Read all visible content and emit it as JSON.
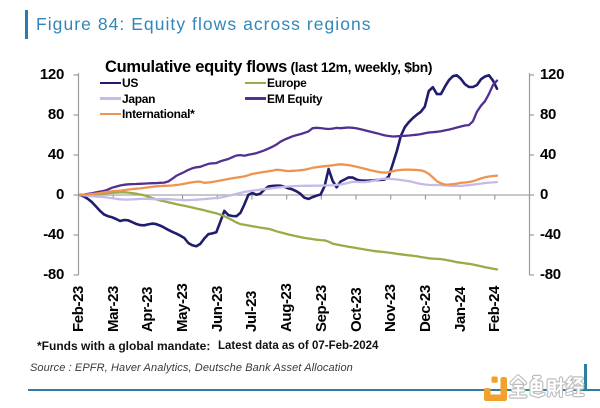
{
  "header": {
    "title": "Figure 84: Equity flows across regions",
    "title_color": "#3087ba",
    "bar_color": "#2d7ba6"
  },
  "chart_data": {
    "type": "line",
    "title": "Cumulative equity flows",
    "subtitle": "(last 12m, weekly, $bn)",
    "ylim": [
      -80,
      120
    ],
    "y_ticks": [
      "120",
      "80",
      "40",
      "0",
      "-40",
      "-80"
    ],
    "y_axis_sides": "left and right",
    "grid": "zero line only",
    "legend_position": "top-left two columns",
    "x_labels": [
      "Feb-23",
      "Mar-23",
      "Apr-23",
      "May-23",
      "Jun-23",
      "Jul-23",
      "Aug-23",
      "Sep-23",
      "Oct-23",
      "Nov-23",
      "Dec-23",
      "Jan-24",
      "Feb-24"
    ],
    "x_range_note": "weekly data from Feb-23 to 07-Feb-2024",
    "series": [
      {
        "name": "US",
        "color": "#1f1d6e",
        "values": [
          0,
          -1.5,
          -4.0,
          -7.2,
          -11.5,
          -15.9,
          -19.5,
          -21.2,
          -22.3,
          -24.0,
          -26.0,
          -25.0,
          -25.3,
          -27.1,
          -28.9,
          -30.1,
          -30.3,
          -29.4,
          -28.6,
          -29.1,
          -30.6,
          -32.6,
          -34.8,
          -36.8,
          -38.6,
          -40.6,
          -43.0,
          -48.0,
          -50.3,
          -51.3,
          -48.9,
          -43.5,
          -39.2,
          -38.4,
          -37.3,
          -26.8,
          -15.9,
          -20.1,
          -21.0,
          -21.2,
          -17.9,
          -9.4,
          0.2,
          2.0,
          0.3,
          1.4,
          5.4,
          8.6,
          9.1,
          9.3,
          9.3,
          8.2,
          6.6,
          5.6,
          3.7,
          1.1,
          -2.8,
          -3.9,
          -2.1,
          -0.6,
          0.5,
          8.8,
          26.0,
          14.2,
          7.7,
          13.5,
          15.5,
          17.6,
          17.4,
          15.4,
          14.4,
          14.3,
          14.4,
          14.6,
          14.9,
          15.2,
          15.6,
          18.5,
          31.1,
          43.8,
          59.0,
          67.8,
          72.8,
          76.9,
          80.3,
          83.2,
          88.3,
          104.0,
          107.8,
          100.9,
          100.9,
          108.3,
          114.8,
          118.8,
          119.7,
          116.1,
          110.8,
          108.1,
          108.0,
          110.0,
          115.8,
          118.5,
          119.7,
          114.4,
          106.3
        ]
      },
      {
        "name": "Europe",
        "color": "#9aab4a",
        "values": [
          0,
          0.2,
          0.4,
          0.6,
          0.9,
          1.2,
          1.5,
          1.9,
          2.2,
          2.4,
          2.6,
          2.8,
          2.4,
          1.9,
          1.4,
          0.5,
          -0.3,
          -1.6,
          -3.1,
          -4.4,
          -5.5,
          -6.3,
          -7.2,
          -8.1,
          -9.1,
          -10.0,
          -10.8,
          -11.6,
          -12.5,
          -13.5,
          -14.4,
          -15.3,
          -16.4,
          -17.4,
          -18.3,
          -19.6,
          -21.2,
          -23.2,
          -25.2,
          -27.5,
          -29.1,
          -29.8,
          -30.5,
          -31.2,
          -31.9,
          -32.6,
          -33.2,
          -33.8,
          -34.9,
          -36.3,
          -37.4,
          -38.4,
          -39.5,
          -40.4,
          -41.2,
          -42.1,
          -42.9,
          -43.5,
          -44.1,
          -44.7,
          -45.1,
          -45.4,
          -46.7,
          -48.6,
          -49.5,
          -50.3,
          -51.0,
          -51.8,
          -52.4,
          -53.1,
          -53.8,
          -54.5,
          -55.1,
          -55.8,
          -56.3,
          -56.7,
          -57.1,
          -57.6,
          -58.2,
          -58.8,
          -59.3,
          -59.8,
          -60.3,
          -60.7,
          -61.3,
          -62.0,
          -62.6,
          -63.3,
          -63.6,
          -63.9,
          -64.1,
          -64.7,
          -65.5,
          -66.3,
          -67.2,
          -67.7,
          -68.3,
          -68.8,
          -69.5,
          -70.4,
          -71.3,
          -72.2,
          -72.9,
          -73.7,
          -74.4
        ]
      },
      {
        "name": "Japan",
        "color": "#c7b9e8",
        "values": [
          0,
          -0.4,
          -0.8,
          -1.2,
          -1.6,
          -1.9,
          -2.1,
          -2.6,
          -3.2,
          -3.8,
          -4.3,
          -4.6,
          -4.6,
          -4.4,
          -4.2,
          -3.9,
          -3.8,
          -3.9,
          -4.1,
          -4.3,
          -4.2,
          -4.0,
          -4.2,
          -4.4,
          -4.6,
          -4.9,
          -5.2,
          -5.1,
          -4.9,
          -4.7,
          -4.4,
          -4.1,
          -3.7,
          -3.4,
          -3.0,
          -2.6,
          -1.8,
          -0.9,
          0.1,
          1.1,
          2.1,
          3.1,
          3.8,
          4.4,
          4.9,
          5.3,
          5.8,
          6.3,
          6.8,
          7.3,
          7.7,
          8.1,
          8.5,
          8.8,
          9.0,
          9.1,
          9.2,
          9.2,
          9.3,
          9.3,
          9.4,
          9.5,
          9.6,
          9.7,
          10.1,
          10.5,
          11.3,
          12.2,
          13.2,
          13.1,
          12.9,
          12.9,
          13.3,
          14.1,
          14.9,
          16.0,
          16.4,
          16.3,
          15.9,
          15.5,
          15.0,
          14.4,
          13.9,
          13.0,
          11.9,
          11.1,
          10.5,
          10.1,
          10.0,
          10.0,
          9.8,
          9.7,
          9.4,
          9.2,
          9.1,
          9.1,
          9.5,
          9.9,
          10.3,
          10.9,
          11.4,
          12.0,
          12.4,
          12.6,
          12.9
        ]
      },
      {
        "name": "EM Equity",
        "color": "#533090",
        "values": [
          0,
          0.5,
          1.1,
          1.7,
          2.6,
          3.4,
          4.1,
          5.6,
          7.3,
          8.4,
          9.5,
          10.2,
          10.7,
          10.9,
          11.0,
          11.2,
          11.4,
          11.6,
          11.8,
          11.9,
          12.2,
          12.4,
          13.5,
          16.2,
          19.1,
          21.1,
          23.0,
          25.1,
          26.7,
          27.7,
          28.2,
          29.7,
          31.1,
          31.7,
          31.9,
          33.7,
          34.9,
          36.0,
          37.8,
          39.5,
          39.9,
          39.3,
          40.3,
          41.0,
          41.9,
          43.2,
          44.7,
          46.4,
          48.3,
          50.5,
          53.3,
          55.4,
          57.0,
          58.7,
          59.9,
          60.9,
          62.2,
          63.6,
          66.8,
          67.2,
          66.9,
          66.4,
          66.0,
          66.4,
          67.1,
          66.8,
          67.2,
          67.5,
          67.2,
          66.6,
          65.8,
          64.8,
          63.8,
          62.8,
          61.8,
          60.7,
          59.6,
          59.0,
          58.5,
          58.7,
          59.0,
          59.2,
          59.5,
          59.9,
          60.3,
          60.9,
          61.7,
          62.5,
          62.8,
          63.2,
          63.8,
          64.6,
          65.4,
          66.4,
          67.5,
          68.5,
          69.5,
          69.9,
          73.7,
          83.4,
          89.3,
          93.8,
          101.2,
          110.0,
          114.4
        ]
      },
      {
        "name": "International*",
        "color": "#ef9350",
        "values": [
          0,
          0.3,
          0.6,
          1.0,
          1.4,
          2.0,
          2.6,
          3.2,
          3.8,
          4.1,
          4.3,
          4.9,
          5.4,
          5.9,
          6.3,
          6.6,
          7.1,
          7.7,
          8.2,
          8.7,
          9.0,
          9.2,
          9.3,
          9.5,
          10.0,
          10.5,
          11.3,
          12.0,
          12.7,
          13.3,
          13.3,
          12.2,
          12.5,
          13.0,
          13.8,
          14.5,
          15.3,
          16.0,
          16.7,
          17.4,
          18.0,
          18.6,
          19.8,
          21.1,
          21.8,
          22.5,
          23.1,
          23.7,
          24.4,
          25.2,
          25.0,
          24.3,
          23.9,
          24.2,
          24.4,
          24.8,
          25.2,
          26.1,
          27.2,
          27.8,
          28.3,
          28.8,
          29.2,
          29.7,
          30.3,
          30.7,
          30.3,
          29.9,
          29.1,
          28.3,
          27.3,
          26.3,
          25.3,
          24.3,
          23.4,
          22.7,
          22.3,
          22.9,
          23.8,
          24.6,
          25.1,
          25.3,
          25.3,
          25.2,
          25.0,
          24.6,
          23.5,
          21.1,
          17.6,
          13.8,
          11.6,
          10.4,
          10.5,
          10.8,
          11.4,
          12.2,
          12.5,
          13.0,
          13.7,
          15.2,
          16.6,
          17.7,
          18.5,
          19.0,
          19.3
        ]
      }
    ]
  },
  "footnotes": {
    "funds_note": "*Funds with a global mandate:",
    "latest_note": "Latest data as of 07-Feb-2024"
  },
  "source_line": "Source : EPFR, Haver Analytics, Deutsche Bank Asset Allocation",
  "watermark": {
    "text": "金色财经",
    "logo_color": "#f2a12c",
    "rule_color": "#2e7f9f"
  }
}
